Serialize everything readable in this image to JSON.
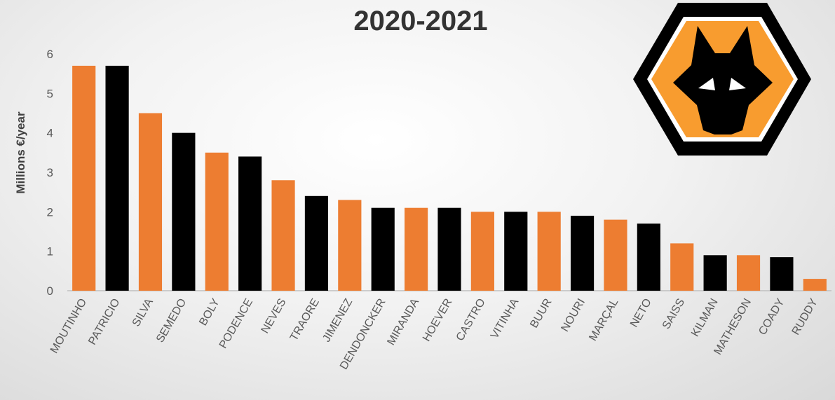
{
  "chart_data": {
    "type": "bar",
    "title": "2020-2021",
    "xlabel": "",
    "ylabel": "Millions €/year",
    "ylim": [
      0,
      6
    ],
    "yticks": [
      "0",
      "1",
      "2",
      "3",
      "4",
      "5",
      "6"
    ],
    "grid": false,
    "categories": [
      "MOUTINHO",
      "PATRICIO",
      "SILVA",
      "SEMEDO",
      "BOLY",
      "PODENCE",
      "NEVES",
      "TRAORE",
      "JIMENEZ",
      "DENDONCKER",
      "MIRANDA",
      "HOEVER",
      "CASTRO",
      "VITINHA",
      "BUUR",
      "NOURI",
      "MARÇAL",
      "NETO",
      "SAISS",
      "KILMAN",
      "MATHESON",
      "COADY",
      "RUDDY"
    ],
    "values": [
      5.7,
      5.7,
      4.5,
      4.0,
      3.5,
      3.4,
      2.8,
      2.4,
      2.3,
      2.1,
      2.1,
      2.1,
      2.0,
      2.0,
      2.0,
      1.9,
      1.8,
      1.7,
      1.2,
      0.9,
      0.9,
      0.85,
      0.3
    ],
    "bar_colors": [
      "#ED7D31",
      "#000000"
    ]
  },
  "logo": {
    "outer_color": "#000000",
    "ring_color": "#ffffff",
    "fill_color": "#F89C2F",
    "icon": "wolf-head-icon"
  }
}
